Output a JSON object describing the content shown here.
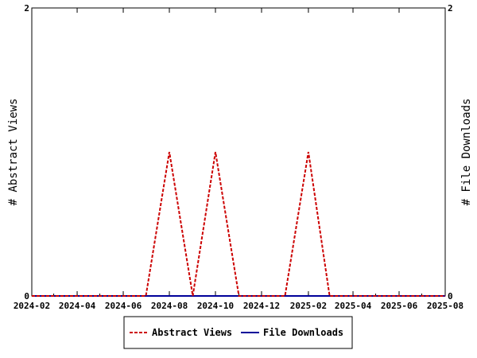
{
  "chart_data": {
    "type": "line",
    "x_tick_labels": [
      "2024-02",
      "2024-04",
      "2024-06",
      "2024-08",
      "2024-10",
      "2024-12",
      "2025-02",
      "2025-04",
      "2025-06",
      "2025-08"
    ],
    "xlim": [
      "2024-02-01",
      "2025-08-01"
    ],
    "ylim": [
      0,
      2
    ],
    "y_tick_labels": [
      "0",
      "2"
    ],
    "y2lim": [
      0,
      2
    ],
    "y2_tick_labels": [
      "0",
      "2"
    ],
    "ylabel": "# Abstract Views",
    "y2label": "# File Downloads",
    "legend_position": "bottom",
    "grid": false,
    "series": [
      {
        "name": "Abstract Views",
        "color": "#cc0000",
        "style": "dashed",
        "axis": "left",
        "points": [
          {
            "x": "2024-02-01",
            "y": 0
          },
          {
            "x": "2024-03-01",
            "y": 0
          },
          {
            "x": "2024-04-01",
            "y": 0
          },
          {
            "x": "2024-05-01",
            "y": 0
          },
          {
            "x": "2024-06-01",
            "y": 0
          },
          {
            "x": "2024-07-01",
            "y": 0
          },
          {
            "x": "2024-08-01",
            "y": 1
          },
          {
            "x": "2024-09-01",
            "y": 0
          },
          {
            "x": "2024-10-01",
            "y": 1
          },
          {
            "x": "2024-11-01",
            "y": 0
          },
          {
            "x": "2024-12-01",
            "y": 0
          },
          {
            "x": "2025-01-01",
            "y": 0
          },
          {
            "x": "2025-02-01",
            "y": 1
          },
          {
            "x": "2025-03-01",
            "y": 0
          },
          {
            "x": "2025-04-01",
            "y": 0
          },
          {
            "x": "2025-05-01",
            "y": 0
          },
          {
            "x": "2025-06-01",
            "y": 0
          },
          {
            "x": "2025-07-01",
            "y": 0
          },
          {
            "x": "2025-08-01",
            "y": 0
          }
        ]
      },
      {
        "name": "File Downloads",
        "color": "#000099",
        "style": "solid",
        "axis": "right",
        "points": [
          {
            "x": "2024-02-01",
            "y": 0
          },
          {
            "x": "2024-03-01",
            "y": 0
          },
          {
            "x": "2024-04-01",
            "y": 0
          },
          {
            "x": "2024-05-01",
            "y": 0
          },
          {
            "x": "2024-06-01",
            "y": 0
          },
          {
            "x": "2024-07-01",
            "y": 0
          },
          {
            "x": "2024-08-01",
            "y": 0
          },
          {
            "x": "2024-09-01",
            "y": 0
          },
          {
            "x": "2024-10-01",
            "y": 0
          },
          {
            "x": "2024-11-01",
            "y": 0
          },
          {
            "x": "2024-12-01",
            "y": 0
          },
          {
            "x": "2025-01-01",
            "y": 0
          },
          {
            "x": "2025-02-01",
            "y": 0
          },
          {
            "x": "2025-03-01",
            "y": 0
          },
          {
            "x": "2025-04-01",
            "y": 0
          },
          {
            "x": "2025-05-01",
            "y": 0
          },
          {
            "x": "2025-06-01",
            "y": 0
          },
          {
            "x": "2025-07-01",
            "y": 0
          },
          {
            "x": "2025-08-01",
            "y": 0
          }
        ]
      }
    ]
  }
}
